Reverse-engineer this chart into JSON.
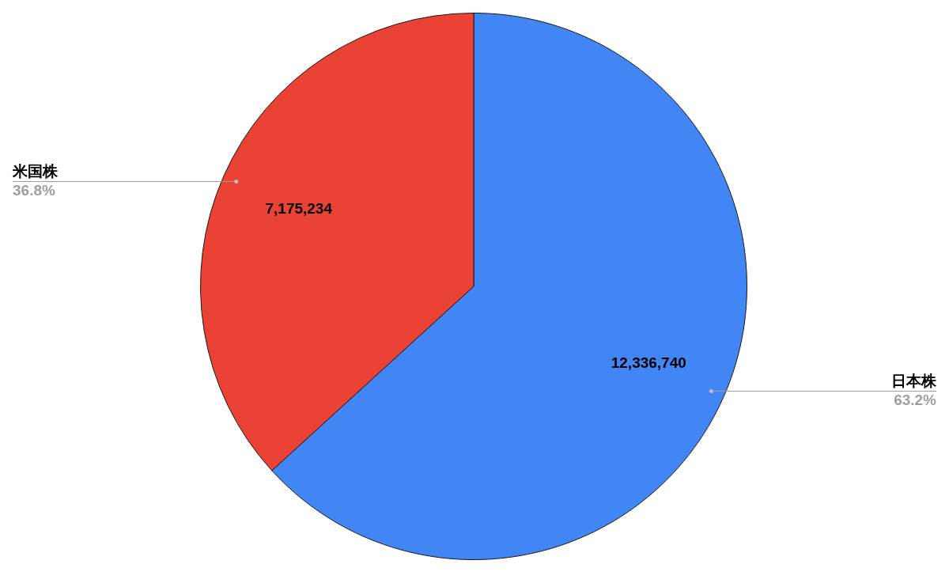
{
  "chart_data": {
    "type": "pie",
    "categories": [
      "日本株",
      "米国株"
    ],
    "values": [
      12336740,
      7175234
    ],
    "colors": [
      "#4285f4",
      "#ea4335"
    ],
    "value_labels": [
      "12,336,740",
      "7,175,234"
    ],
    "annotations": [
      "63.2%",
      "36.8%"
    ],
    "legend": false
  }
}
